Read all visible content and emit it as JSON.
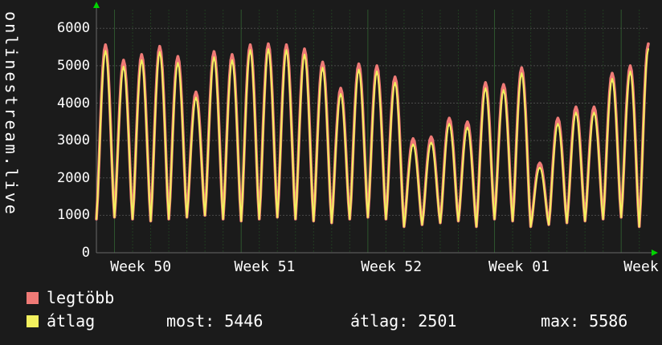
{
  "watermark": {
    "text": "onlinestream.live"
  },
  "chart_data": {
    "type": "line",
    "title": "",
    "ylabel": "",
    "xlabel": "",
    "ylim": [
      0,
      6500
    ],
    "y_ticks": [
      "0",
      "1000",
      "2000",
      "3000",
      "4000",
      "5000",
      "6000"
    ],
    "x_labels": [
      {
        "text": "Week 50",
        "day": 2.45
      },
      {
        "text": "Week 51",
        "day": 9.3
      },
      {
        "text": "Week 52",
        "day": 16.3
      },
      {
        "text": "Week 01",
        "day": 23.35
      },
      {
        "text": "Week",
        "day": 30.1
      }
    ],
    "grid": {
      "h_line": "#4a4a4a",
      "day_line": "#213c21",
      "week_line": "#2e562e",
      "axis": "#6a6a6a",
      "arrow": "#00d400"
    },
    "troughs": [
      900,
      950,
      900,
      850,
      900,
      950,
      1000,
      900,
      850,
      900,
      950,
      900,
      850,
      800,
      900,
      950,
      900,
      700,
      750,
      800,
      850,
      700,
      900,
      850,
      700,
      750,
      800,
      850,
      900,
      950,
      700,
      800
    ],
    "series": [
      {
        "name": "legtöbb",
        "color": "#ef7a76",
        "width": 3.6,
        "peaks": [
          5560,
          5150,
          5300,
          5520,
          5250,
          4300,
          5380,
          5300,
          5560,
          5586,
          5560,
          5450,
          5100,
          4400,
          5050,
          5000,
          4700,
          3050,
          3100,
          3600,
          3500,
          4550,
          4500,
          4950,
          2400,
          3600,
          3900,
          3900,
          4800,
          5000,
          5586
        ]
      },
      {
        "name": "átlag",
        "color": "#f2f05e",
        "width": 2,
        "peaks": [
          5400,
          4980,
          5150,
          5370,
          5080,
          4150,
          5230,
          5150,
          5420,
          5446,
          5420,
          5300,
          4950,
          4250,
          4900,
          4850,
          4550,
          2900,
          2950,
          3450,
          3350,
          4400,
          4350,
          4800,
          2280,
          3450,
          3750,
          3750,
          4650,
          4850,
          5446
        ]
      }
    ],
    "legend_position": "bottom",
    "summary": {
      "most": 5446,
      "atlag": 2501,
      "max": 5586
    }
  },
  "legend": {
    "items": [
      {
        "label": "legtöbb",
        "color": "#ef7a76"
      },
      {
        "label": "átlag",
        "color": "#f2f05e"
      }
    ]
  },
  "stats": {
    "most": {
      "label": "most:",
      "value": "5446"
    },
    "avg": {
      "label": "átlag:",
      "value": "2501"
    },
    "max": {
      "label": "max:",
      "value": "5586"
    }
  }
}
